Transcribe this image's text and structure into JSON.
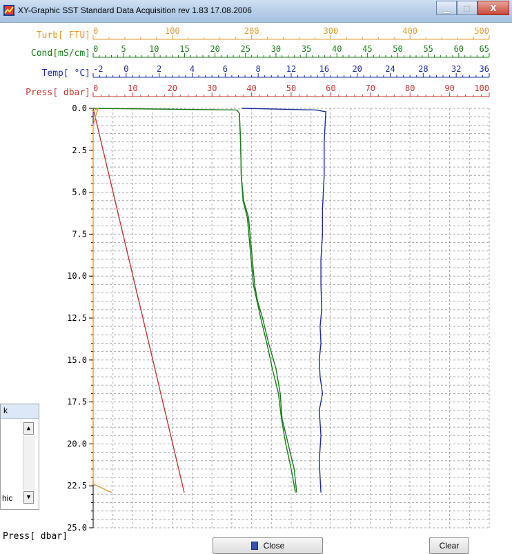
{
  "window": {
    "title": "XY-Graphic   SST Standard Data Acquisition   rev 1.83 17.08.2006",
    "controls": {
      "minimize": "▁",
      "maximize": "□",
      "close": "X"
    }
  },
  "colors": {
    "turb": "#e69a2e",
    "cond": "#1a7a1a",
    "temp": "#1a2a9a",
    "press": "#c83232",
    "grid": "#a8a8a8"
  },
  "axes": {
    "turb": {
      "label": "Turb[  FTU]",
      "ticks": [
        "0",
        "100",
        "200",
        "300",
        "400",
        "500"
      ],
      "min": 0,
      "max": 500
    },
    "cond": {
      "label": "Cond[mS/cm]",
      "ticks": [
        "0",
        "5",
        "10",
        "15",
        "20",
        "25",
        "30",
        "35",
        "40",
        "45",
        "50",
        "55",
        "60",
        "65"
      ],
      "min": 0,
      "max": 65
    },
    "temp": {
      "label": "Temp[   °C]",
      "ticks": [
        "-2",
        "0",
        "2",
        "4",
        "6",
        "8",
        "12",
        "16",
        "20",
        "24",
        "28",
        "32",
        "36"
      ],
      "tick_values": [
        -2,
        0,
        2,
        4,
        6,
        8,
        12,
        16,
        20,
        24,
        28,
        32,
        36
      ]
    },
    "press_top": {
      "label": "Press[ dbar]",
      "ticks": [
        "0",
        "10",
        "20",
        "30",
        "40",
        "50",
        "60",
        "70",
        "80",
        "90",
        "100"
      ],
      "min": 0,
      "max": 100
    },
    "y": {
      "label": "Press[ dbar]",
      "ticks": [
        "0.0",
        "2.5",
        "5.0",
        "7.5",
        "10.0",
        "12.5",
        "15.0",
        "17.5",
        "20.0",
        "22.5",
        "25.0"
      ],
      "min": 0,
      "max": 25,
      "inverted": true
    }
  },
  "chart_data": {
    "type": "line",
    "title": "",
    "xlabel": "",
    "ylabel": "Press[ dbar]",
    "grid": true,
    "ylim": [
      25,
      0
    ],
    "series": [
      {
        "name": "Press",
        "axis": "press_top",
        "x": [
          0,
          23
        ],
        "y": [
          0,
          22.9
        ]
      },
      {
        "name": "Temp",
        "axis": "temp",
        "x": [
          7.0,
          15.0,
          16.2,
          16.0,
          16.0,
          15.8,
          15.8,
          15.6,
          15.6,
          15.7,
          15.5,
          15.6,
          15.4,
          15.5,
          15.8,
          15.4,
          15.6,
          15.4,
          15.5,
          15.6
        ],
        "y": [
          0.0,
          0.1,
          0.2,
          2.0,
          4.0,
          6.0,
          7.5,
          9.0,
          10.5,
          12.0,
          13.0,
          14.0,
          15.0,
          16.0,
          17.0,
          18.0,
          19.5,
          21.0,
          22.0,
          22.9
        ]
      },
      {
        "name": "Cond",
        "axis": "cond",
        "x": [
          0.0,
          23.6,
          24.0,
          24.2,
          24.3,
          24.7,
          25.5,
          26.0,
          26.5,
          27.0,
          27.8,
          28.8,
          30.0,
          30.7,
          31.0,
          32.0,
          33.0,
          33.4
        ],
        "y": [
          0.0,
          0.1,
          0.3,
          2.0,
          4.0,
          5.5,
          6.5,
          8.5,
          10.5,
          11.5,
          12.5,
          14.0,
          15.5,
          17.0,
          18.5,
          20.0,
          21.5,
          22.9
        ]
      },
      {
        "name": "Cond (2)",
        "axis": "cond",
        "x": [
          24.0,
          24.2,
          24.3,
          24.6,
          25.3,
          25.8,
          26.3,
          26.9,
          27.5,
          28.5,
          29.4,
          30.4,
          30.9,
          31.6,
          32.5,
          33.2
        ],
        "y": [
          0.3,
          2.0,
          4.0,
          5.5,
          6.5,
          8.5,
          10.5,
          11.5,
          12.5,
          14.0,
          15.5,
          17.0,
          18.5,
          20.0,
          21.5,
          22.9
        ]
      },
      {
        "name": "Turb",
        "axis": "turb",
        "x": [
          0,
          2,
          4,
          6,
          0,
          0,
          0,
          0,
          0,
          0,
          0,
          0,
          0,
          0,
          10,
          18,
          24
        ],
        "y": [
          0.2,
          0.1,
          0.05,
          0.0,
          1.0,
          5.0,
          10.0,
          14.0,
          15.5,
          17.0,
          18.5,
          20.0,
          21.5,
          22.4,
          22.6,
          22.8,
          22.9
        ]
      }
    ]
  },
  "left_panel": {
    "header": "k",
    "item": "hic"
  },
  "buttons": {
    "close": "Close",
    "clear": "Clear"
  }
}
